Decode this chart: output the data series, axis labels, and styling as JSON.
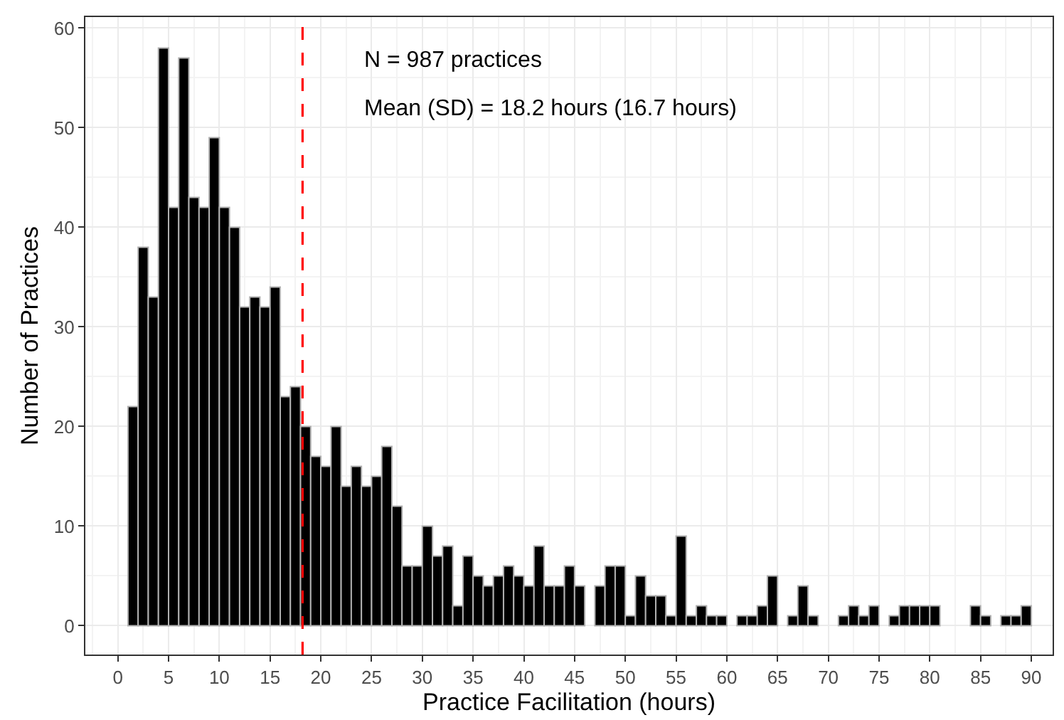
{
  "chart_data": {
    "type": "histogram",
    "xlabel": "Practice Facilitation (hours)",
    "ylabel": "Number of Practices",
    "bins": [
      1,
      2,
      3,
      4,
      5,
      6,
      7,
      8,
      9,
      10,
      11,
      12,
      13,
      14,
      15,
      16,
      17,
      18,
      19,
      20,
      21,
      22,
      23,
      24,
      25,
      26,
      27,
      28,
      29,
      30,
      31,
      32,
      33,
      34,
      35,
      36,
      37,
      38,
      39,
      40,
      41,
      42,
      43,
      44,
      45,
      46,
      47,
      48,
      49,
      50,
      51,
      52,
      53,
      54,
      55,
      56,
      57,
      58,
      59,
      60,
      61,
      62,
      63,
      64,
      65,
      66,
      67,
      68,
      69,
      70,
      71,
      72,
      73,
      74,
      75,
      76,
      77,
      78,
      79,
      80,
      81,
      82,
      83,
      84,
      85,
      86,
      87,
      88,
      89,
      90
    ],
    "values": [
      22,
      38,
      33,
      58,
      42,
      57,
      43,
      42,
      49,
      42,
      40,
      32,
      33,
      32,
      34,
      23,
      24,
      20,
      17,
      16,
      20,
      14,
      16,
      14,
      15,
      18,
      12,
      6,
      6,
      10,
      7,
      8,
      2,
      7,
      5,
      4,
      5,
      6,
      5,
      4,
      8,
      4,
      4,
      6,
      4,
      0,
      4,
      6,
      6,
      1,
      5,
      3,
      3,
      1,
      9,
      1,
      2,
      1,
      1,
      0,
      1,
      1,
      2,
      5,
      0,
      1,
      4,
      1,
      0,
      0,
      1,
      2,
      1,
      2,
      0,
      1,
      2,
      2,
      2,
      2,
      0,
      0,
      0,
      2,
      1,
      0,
      1,
      1,
      2
    ],
    "color": "#000000",
    "xlim": [
      -3.2,
      92.1
    ],
    "ylim": [
      -2.9,
      61.1
    ],
    "xticks": [
      0,
      5,
      10,
      15,
      20,
      25,
      30,
      35,
      40,
      45,
      50,
      55,
      60,
      65,
      70,
      75,
      80,
      85,
      90
    ],
    "yticks": [
      0,
      10,
      20,
      30,
      40,
      50,
      60
    ],
    "grid": true,
    "ref_lines": [
      {
        "axis": "x",
        "value": 18.2,
        "color": "#ff0000",
        "line_style": "dashed"
      }
    ],
    "annotations": [
      "N = 987 practices",
      "Mean (SD) = 18.2 hours (16.7 hours)"
    ]
  }
}
